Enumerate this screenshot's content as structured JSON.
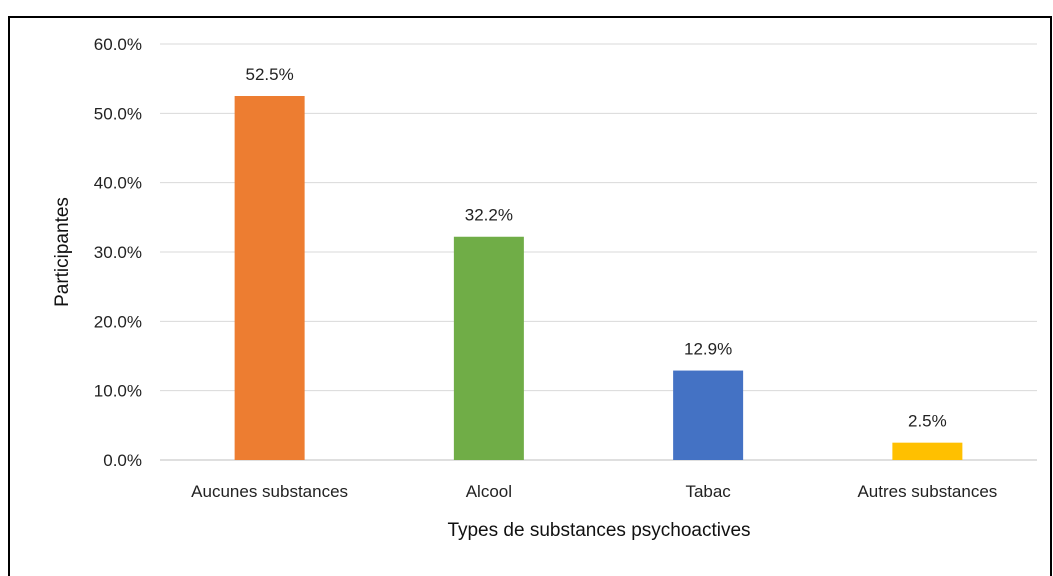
{
  "chart_data": {
    "type": "bar",
    "title": "",
    "xlabel": "Types de substances psychoactives",
    "ylabel": "Participantes",
    "categories": [
      "Aucunes substances",
      "Alcool",
      "Tabac",
      "Autres substances"
    ],
    "values": [
      52.5,
      32.2,
      12.9,
      2.5
    ],
    "data_labels": [
      "52.5%",
      "32.2%",
      "12.9%",
      "2.5%"
    ],
    "colors": [
      "#ED7D31",
      "#70AD47",
      "#4472C4",
      "#FFC000"
    ],
    "ylim": [
      0,
      60
    ],
    "yticks": [
      0,
      10,
      20,
      30,
      40,
      50,
      60
    ],
    "ytick_labels": [
      "0.0%",
      "10.0%",
      "20.0%",
      "30.0%",
      "40.0%",
      "50.0%",
      "60.0%"
    ],
    "grid": true,
    "legend": "none"
  }
}
